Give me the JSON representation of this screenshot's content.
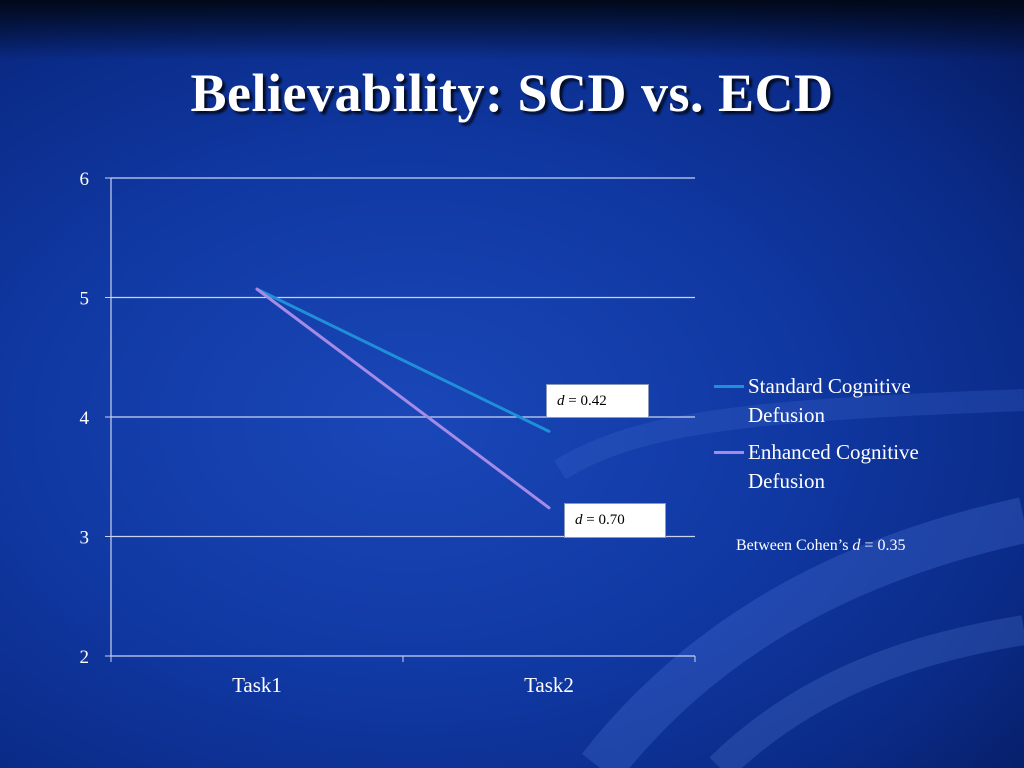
{
  "title": "Believability: SCD vs. ECD",
  "colors": {
    "background": "#1038a2",
    "grid": "#c9d4f0",
    "series_standard": "#1e8fd8",
    "series_enhanced": "#a58be6"
  },
  "chart_data": {
    "type": "line",
    "categories": [
      "Task1",
      "Task2"
    ],
    "series": [
      {
        "name": "Standard Cognitive Defusion",
        "values": [
          5.07,
          3.88
        ],
        "color": "#1e8fd8"
      },
      {
        "name": "Enhanced Cognitive Defusion",
        "values": [
          5.07,
          3.24
        ],
        "color": "#a58be6"
      }
    ],
    "ylim": [
      2,
      6
    ],
    "yticks": [
      "2",
      "3",
      "4",
      "5",
      "6"
    ],
    "grid": true,
    "legend_position": "right",
    "xlabel": "",
    "ylabel": "",
    "annotations": [
      {
        "d_symbol": "d",
        "d_rest": " = 0.42"
      },
      {
        "d_symbol": "d",
        "d_rest": " = 0.70"
      }
    ],
    "note": {
      "prefix": "Between Cohen’s ",
      "d_symbol": "d",
      "suffix": " = 0.35"
    }
  }
}
